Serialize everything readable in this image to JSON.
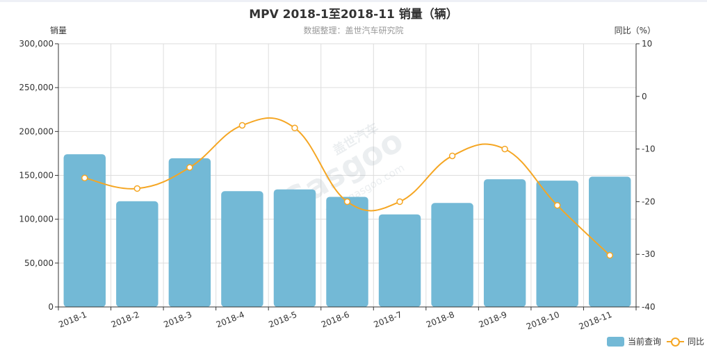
{
  "title": "MPV 2018-1至2018-11 销量（辆）",
  "subtitle": "数据整理：盖世汽车研究院",
  "left_axis_label": "销量",
  "right_axis_label": "同比（%）",
  "watermark": "盖世汽车 Gasgoo auto.gasgoo.com",
  "colors": {
    "bar": "#73b9d6",
    "line": "#f5a623",
    "grid": "#dddddd",
    "axis": "#333333"
  },
  "legend": [
    {
      "label": "当前查询",
      "type": "bar"
    },
    {
      "label": "同比",
      "type": "line"
    }
  ],
  "chart_data": {
    "type": "bar",
    "categories": [
      "2018-1",
      "2018-2",
      "2018-3",
      "2018-4",
      "2018-5",
      "2018-6",
      "2018-7",
      "2018-8",
      "2018-9",
      "2018-10",
      "2018-11"
    ],
    "series": [
      {
        "name": "当前查询",
        "type": "bar",
        "axis": "left",
        "values": [
          174000,
          120500,
          169500,
          132000,
          134000,
          125500,
          105500,
          118500,
          145500,
          144000,
          148500
        ]
      },
      {
        "name": "同比",
        "type": "line",
        "axis": "right",
        "values": [
          -15.5,
          -17.5,
          -13.5,
          -5.5,
          -6.0,
          -20.0,
          -20.0,
          -11.3,
          -10.0,
          -20.7,
          -30.2
        ]
      }
    ],
    "yleft": {
      "min": 0,
      "max": 300000,
      "ticks": [
        0,
        50000,
        100000,
        150000,
        200000,
        250000,
        300000
      ]
    },
    "yright": {
      "min": -40,
      "max": 10,
      "ticks": [
        -40,
        -30,
        -20,
        -10,
        0,
        10
      ]
    },
    "grid": true,
    "legend_position": "bottom-right"
  }
}
